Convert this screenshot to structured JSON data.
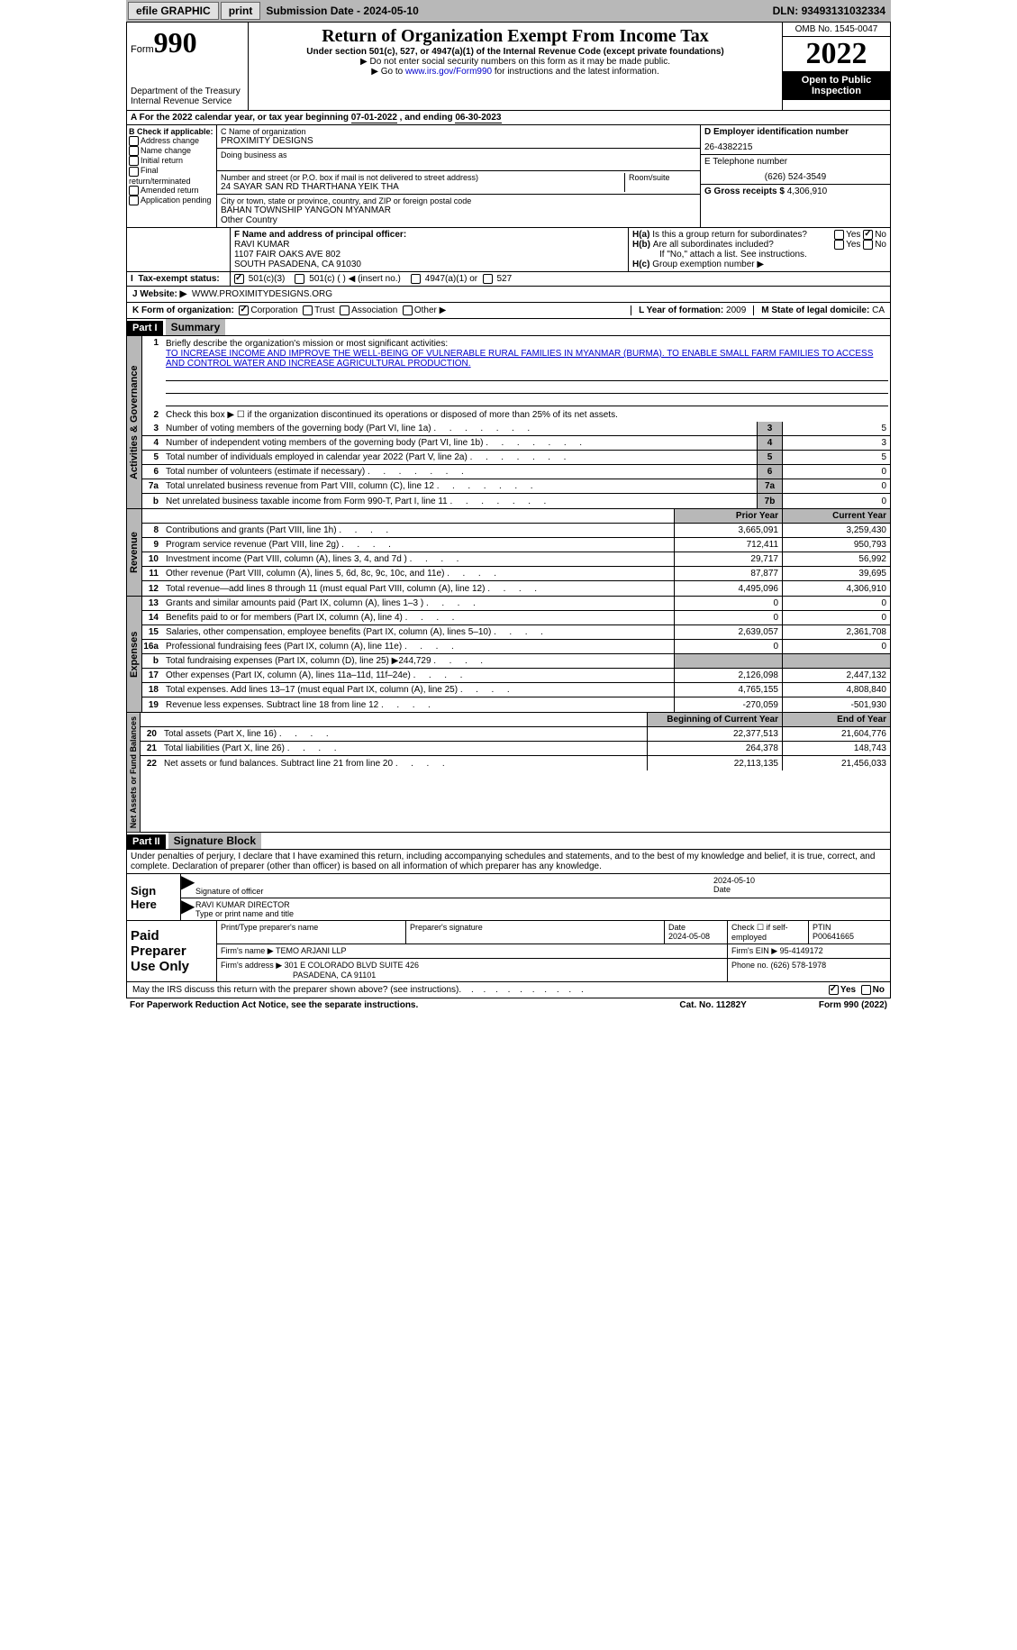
{
  "topbar": {
    "efile": "efile GRAPHIC",
    "print": "print",
    "submission_label": "Submission Date - ",
    "submission_date": "2024-05-10",
    "dln_label": "DLN: ",
    "dln": "93493131032334"
  },
  "header": {
    "form_label": "Form",
    "form_num": "990",
    "dept": "Department of the Treasury",
    "irs": "Internal Revenue Service",
    "title": "Return of Organization Exempt From Income Tax",
    "subtitle": "Under section 501(c), 527, or 4947(a)(1) of the Internal Revenue Code (except private foundations)",
    "note1": "▶ Do not enter social security numbers on this form as it may be made public.",
    "note2_pre": "▶ Go to ",
    "note2_link": "www.irs.gov/Form990",
    "note2_post": " for instructions and the latest information.",
    "omb": "OMB No. 1545-0047",
    "year": "2022",
    "inspection": "Open to Public Inspection"
  },
  "section_a": {
    "text_pre": "A For the 2022 calendar year, or tax year beginning ",
    "begin": "07-01-2022",
    "text_mid": " , and ending ",
    "end": "06-30-2023"
  },
  "block_b": {
    "label": "B Check if applicable:",
    "items": [
      "Address change",
      "Name change",
      "Initial return",
      "Final return/terminated",
      "Amended return",
      "Application pending"
    ]
  },
  "block_c": {
    "name_label": "C Name of organization",
    "name": "PROXIMITY DESIGNS",
    "dba_label": "Doing business as",
    "addr_label": "Number and street (or P.O. box if mail is not delivered to street address)",
    "addr": "24 SAYAR SAN RD THARTHANA YEIK THA",
    "room_label": "Room/suite",
    "city_label": "City or town, state or province, country, and ZIP or foreign postal code",
    "city": "BAHAN TOWNSHIP YANGON MYANMAR",
    "country": "Other Country"
  },
  "block_d": {
    "label": "D Employer identification number",
    "ein": "26-4382215",
    "e_label": "E Telephone number",
    "phone": "(626) 524-3549",
    "g_label": "G Gross receipts $ ",
    "g_val": "4,306,910"
  },
  "block_f": {
    "label": "F Name and address of principal officer:",
    "name": "RAVI KUMAR",
    "addr1": "1107 FAIR OAKS AVE 802",
    "addr2": "SOUTH PASADENA, CA  91030"
  },
  "block_h": {
    "ha_label": "Is this a group return for subordinates?",
    "hb_label": "Are all subordinates included?",
    "hb_note": "If \"No,\" attach a list. See instructions.",
    "hc_label": "Group exemption number ▶",
    "yes": "Yes",
    "no": "No"
  },
  "tax_status": {
    "label": "Tax-exempt status:",
    "opt1": "501(c)(3)",
    "opt2": "501(c) (  ) ◀ (insert no.)",
    "opt3": "4947(a)(1) or",
    "opt4": "527"
  },
  "website": {
    "label": "J   Website: ▶",
    "url": "WWW.PROXIMITYDESIGNS.ORG"
  },
  "block_k": {
    "label": "K Form of organization:",
    "opts": [
      "Corporation",
      "Trust",
      "Association",
      "Other ▶"
    ],
    "l_label": "L Year of formation: ",
    "l_val": "2009",
    "m_label": "M State of legal domicile: ",
    "m_val": "CA"
  },
  "part1": {
    "hdr": "Part I",
    "title": "Summary",
    "q1": "Briefly describe the organization's mission or most significant activities:",
    "mission": "TO INCREASE INCOME AND IMPROVE THE WELL-BEING OF VULNERABLE RURAL FAMILIES IN MYANMAR (BURMA). TO ENABLE SMALL FARM FAMILIES TO ACCESS AND CONTROL WATER AND INCREASE AGRICULTURAL PRODUCTION.",
    "q2": "Check this box ▶ ☐ if the organization discontinued its operations or disposed of more than 25% of its net assets.",
    "vtab_ag": "Activities & Governance",
    "vtab_rev": "Revenue",
    "vtab_exp": "Expenses",
    "vtab_na": "Net Assets or Fund Balances",
    "prior_hdr": "Prior Year",
    "current_hdr": "Current Year",
    "begin_hdr": "Beginning of Current Year",
    "end_hdr": "End of Year",
    "lines_ag": [
      {
        "n": "3",
        "t": "Number of voting members of the governing body (Part VI, line 1a)",
        "box": "3",
        "v": "5"
      },
      {
        "n": "4",
        "t": "Number of independent voting members of the governing body (Part VI, line 1b)",
        "box": "4",
        "v": "3"
      },
      {
        "n": "5",
        "t": "Total number of individuals employed in calendar year 2022 (Part V, line 2a)",
        "box": "5",
        "v": "5"
      },
      {
        "n": "6",
        "t": "Total number of volunteers (estimate if necessary)",
        "box": "6",
        "v": "0"
      },
      {
        "n": "7a",
        "t": "Total unrelated business revenue from Part VIII, column (C), line 12",
        "box": "7a",
        "v": "0"
      },
      {
        "n": "b",
        "t": "Net unrelated business taxable income from Form 990-T, Part I, line 11",
        "box": "7b",
        "v": "0"
      }
    ],
    "lines_rev": [
      {
        "n": "8",
        "t": "Contributions and grants (Part VIII, line 1h)",
        "p": "3,665,091",
        "c": "3,259,430"
      },
      {
        "n": "9",
        "t": "Program service revenue (Part VIII, line 2g)",
        "p": "712,411",
        "c": "950,793"
      },
      {
        "n": "10",
        "t": "Investment income (Part VIII, column (A), lines 3, 4, and 7d )",
        "p": "29,717",
        "c": "56,992"
      },
      {
        "n": "11",
        "t": "Other revenue (Part VIII, column (A), lines 5, 6d, 8c, 9c, 10c, and 11e)",
        "p": "87,877",
        "c": "39,695"
      },
      {
        "n": "12",
        "t": "Total revenue—add lines 8 through 11 (must equal Part VIII, column (A), line 12)",
        "p": "4,495,096",
        "c": "4,306,910"
      }
    ],
    "lines_exp": [
      {
        "n": "13",
        "t": "Grants and similar amounts paid (Part IX, column (A), lines 1–3 )",
        "p": "0",
        "c": "0"
      },
      {
        "n": "14",
        "t": "Benefits paid to or for members (Part IX, column (A), line 4)",
        "p": "0",
        "c": "0"
      },
      {
        "n": "15",
        "t": "Salaries, other compensation, employee benefits (Part IX, column (A), lines 5–10)",
        "p": "2,639,057",
        "c": "2,361,708"
      },
      {
        "n": "16a",
        "t": "Professional fundraising fees (Part IX, column (A), line 11e)",
        "p": "0",
        "c": "0"
      },
      {
        "n": "b",
        "t": "Total fundraising expenses (Part IX, column (D), line 25) ▶244,729",
        "p": "",
        "c": "",
        "shaded": true
      },
      {
        "n": "17",
        "t": "Other expenses (Part IX, column (A), lines 11a–11d, 11f–24e)",
        "p": "2,126,098",
        "c": "2,447,132"
      },
      {
        "n": "18",
        "t": "Total expenses. Add lines 13–17 (must equal Part IX, column (A), line 25)",
        "p": "4,765,155",
        "c": "4,808,840"
      },
      {
        "n": "19",
        "t": "Revenue less expenses. Subtract line 18 from line 12",
        "p": "-270,059",
        "c": "-501,930"
      }
    ],
    "lines_na": [
      {
        "n": "20",
        "t": "Total assets (Part X, line 16)",
        "p": "22,377,513",
        "c": "21,604,776"
      },
      {
        "n": "21",
        "t": "Total liabilities (Part X, line 26)",
        "p": "264,378",
        "c": "148,743"
      },
      {
        "n": "22",
        "t": "Net assets or fund balances. Subtract line 21 from line 20",
        "p": "22,113,135",
        "c": "21,456,033"
      }
    ]
  },
  "part2": {
    "hdr": "Part II",
    "title": "Signature Block",
    "decl": "Under penalties of perjury, I declare that I have examined this return, including accompanying schedules and statements, and to the best of my knowledge and belief, it is true, correct, and complete. Declaration of preparer (other than officer) is based on all information of which preparer has any knowledge.",
    "sign_here": "Sign Here",
    "sig_officer": "Signature of officer",
    "sig_date": "2024-05-10",
    "date_label": "Date",
    "officer_name": "RAVI KUMAR  DIRECTOR",
    "type_name": "Type or print name and title",
    "paid_prep": "Paid Preparer Use Only",
    "prep_name_label": "Print/Type preparer's name",
    "prep_sig_label": "Preparer's signature",
    "prep_date": "2024-05-08",
    "check_self": "Check ☐ if self-employed",
    "ptin_label": "PTIN",
    "ptin": "P00641665",
    "firm_name_label": "Firm's name    ▶ ",
    "firm_name": "TEMO ARJANI LLP",
    "firm_ein_label": "Firm's EIN ▶ ",
    "firm_ein": "95-4149172",
    "firm_addr_label": "Firm's address ▶ ",
    "firm_addr1": "301 E COLORADO BLVD SUITE 426",
    "firm_addr2": "PASADENA, CA  91101",
    "firm_phone_label": "Phone no. ",
    "firm_phone": "(626) 578-1978",
    "discuss": "May the IRS discuss this return with the preparer shown above? (see instructions)"
  },
  "footer": {
    "left": "For Paperwork Reduction Act Notice, see the separate instructions.",
    "mid": "Cat. No. 11282Y",
    "right": "Form 990 (2022)"
  }
}
